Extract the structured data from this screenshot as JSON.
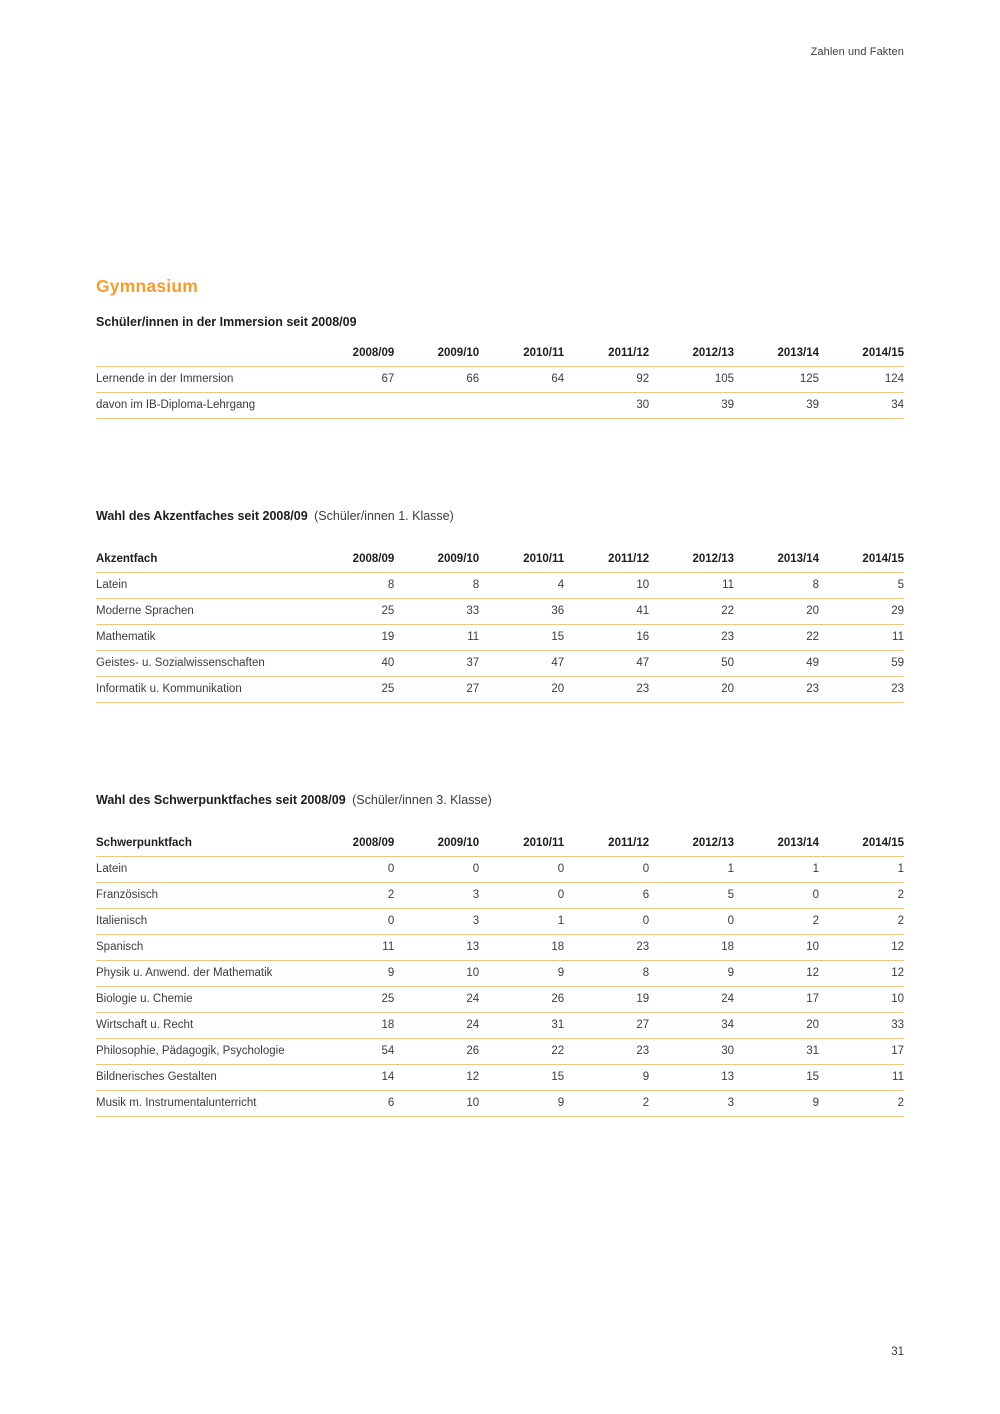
{
  "page": {
    "header_right": "Zahlen und Fakten",
    "title": "Gymnasium",
    "page_number": "31",
    "accent_color": "#f59c2f",
    "rule_color": "#eec584"
  },
  "sections": [
    {
      "heading_bold": "Schüler/innen in der Immersion seit 2008/09",
      "heading_note": "",
      "table": {
        "first_col_header": "",
        "year_headers": [
          "2008/09",
          "2009/10",
          "2010/11",
          "2011/12",
          "2012/13",
          "2013/14",
          "2014/15"
        ],
        "rows": [
          {
            "label": "Lernende in der Immersion",
            "values": [
              "67",
              "66",
              "64",
              "92",
              "105",
              "125",
              "124"
            ]
          },
          {
            "label": "davon im IB-Diploma-Lehrgang",
            "values": [
              "",
              "",
              "",
              "30",
              "39",
              "39",
              "34"
            ]
          }
        ]
      }
    },
    {
      "heading_bold": "Wahl des Akzentfaches seit 2008/09",
      "heading_note": "(Schüler/innen 1. Klasse)",
      "table": {
        "first_col_header": "Akzentfach",
        "year_headers": [
          "2008/09",
          "2009/10",
          "2010/11",
          "2011/12",
          "2012/13",
          "2013/14",
          "2014/15"
        ],
        "rows": [
          {
            "label": "Latein",
            "values": [
              "8",
              "8",
              "4",
              "10",
              "11",
              "8",
              "5"
            ]
          },
          {
            "label": "Moderne Sprachen",
            "values": [
              "25",
              "33",
              "36",
              "41",
              "22",
              "20",
              "29"
            ]
          },
          {
            "label": "Mathematik",
            "values": [
              "19",
              "11",
              "15",
              "16",
              "23",
              "22",
              "11"
            ]
          },
          {
            "label": "Geistes- u. Sozialwissenschaften",
            "values": [
              "40",
              "37",
              "47",
              "47",
              "50",
              "49",
              "59"
            ]
          },
          {
            "label": "Informatik u. Kommunikation",
            "values": [
              "25",
              "27",
              "20",
              "23",
              "20",
              "23",
              "23"
            ]
          }
        ]
      }
    },
    {
      "heading_bold": "Wahl des Schwerpunktfaches seit 2008/09",
      "heading_note": "(Schüler/innen 3. Klasse)",
      "table": {
        "first_col_header": "Schwerpunktfach",
        "year_headers": [
          "2008/09",
          "2009/10",
          "2010/11",
          "2011/12",
          "2012/13",
          "2013/14",
          "2014/15"
        ],
        "rows": [
          {
            "label": "Latein",
            "values": [
              "0",
              "0",
              "0",
              "0",
              "1",
              "1",
              "1"
            ]
          },
          {
            "label": "Französisch",
            "values": [
              "2",
              "3",
              "0",
              "6",
              "5",
              "0",
              "2"
            ]
          },
          {
            "label": "Italienisch",
            "values": [
              "0",
              "3",
              "1",
              "0",
              "0",
              "2",
              "2"
            ]
          },
          {
            "label": "Spanisch",
            "values": [
              "11",
              "13",
              "18",
              "23",
              "18",
              "10",
              "12"
            ]
          },
          {
            "label": "Physik u. Anwend. der Mathematik",
            "values": [
              "9",
              "10",
              "9",
              "8",
              "9",
              "12",
              "12"
            ]
          },
          {
            "label": "Biologie u. Chemie",
            "values": [
              "25",
              "24",
              "26",
              "19",
              "24",
              "17",
              "10"
            ]
          },
          {
            "label": "Wirtschaft u. Recht",
            "values": [
              "18",
              "24",
              "31",
              "27",
              "34",
              "20",
              "33"
            ]
          },
          {
            "label": "Philosophie, Pädagogik, Psychologie",
            "values": [
              "54",
              "26",
              "22",
              "23",
              "30",
              "31",
              "17"
            ]
          },
          {
            "label": "Bildnerisches Gestalten",
            "values": [
              "14",
              "12",
              "15",
              "9",
              "13",
              "15",
              "11"
            ]
          },
          {
            "label": "Musik m. Instrumentalunterricht",
            "values": [
              "6",
              "10",
              "9",
              "2",
              "3",
              "9",
              "2"
            ]
          }
        ]
      }
    }
  ]
}
